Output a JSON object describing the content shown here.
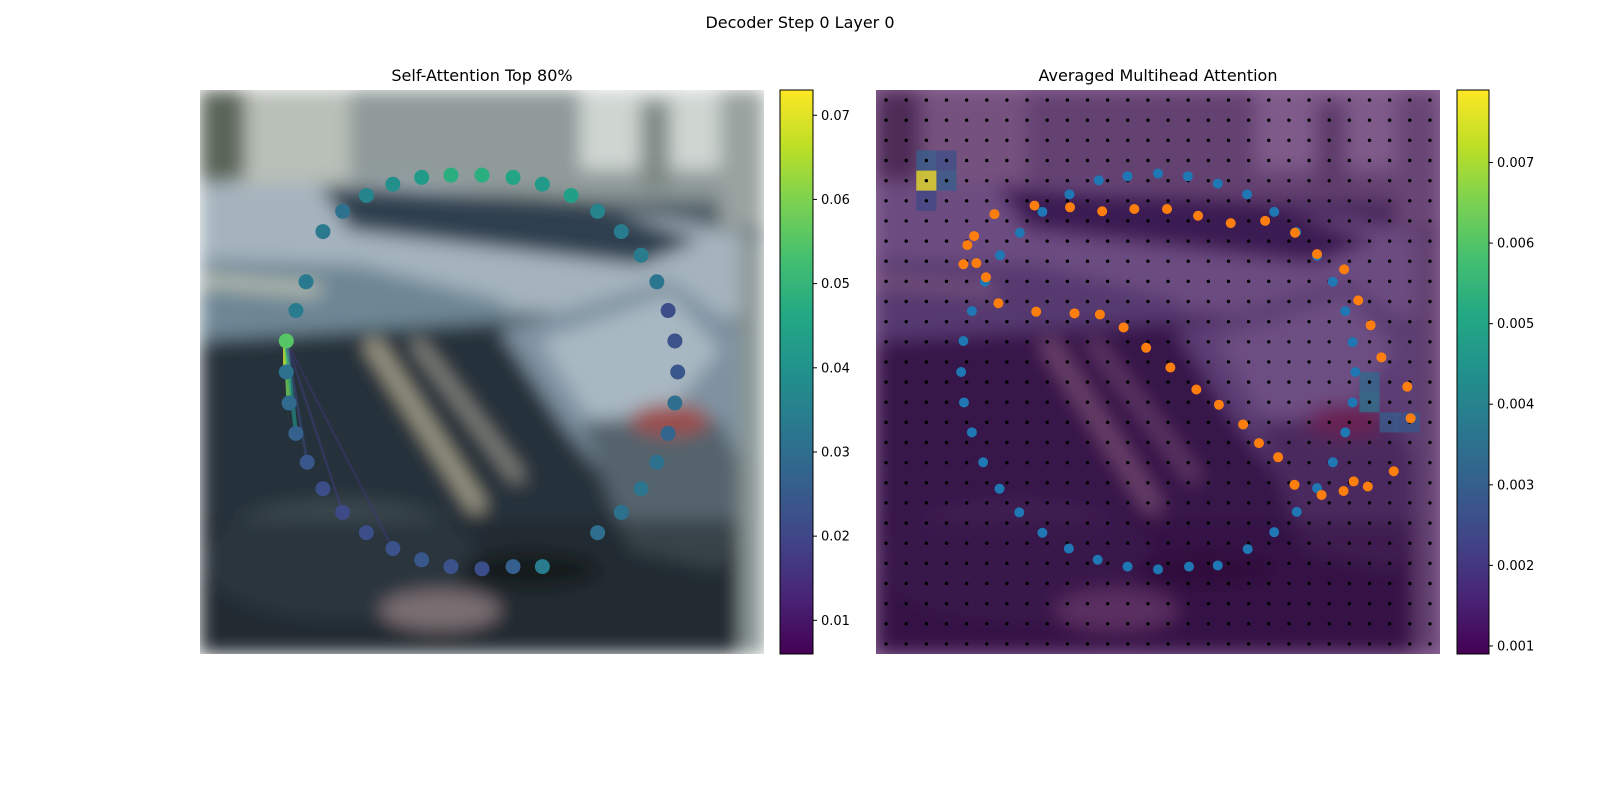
{
  "figure": {
    "suptitle": "Decoder Step 0 Layer 0"
  },
  "colors": {
    "viridis": [
      "#440154",
      "#482475",
      "#414487",
      "#355f8d",
      "#2a788e",
      "#21918c",
      "#22a884",
      "#44bf70",
      "#7ad151",
      "#bddf26",
      "#fde725"
    ],
    "orange_points": "#ff7f0e",
    "blue_points": "#1f77b4",
    "grid_dots": "#000000"
  },
  "chart_data": [
    {
      "type": "scatter",
      "title": "Self-Attention Top 80%",
      "background": "blurred street photo with parked cars",
      "xlim": [
        0,
        1
      ],
      "ylim": [
        0,
        1
      ],
      "points": [
        {
          "x": 0.5,
          "y": 0.849,
          "v": 0.048
        },
        {
          "x": 0.555,
          "y": 0.845,
          "v": 0.045
        },
        {
          "x": 0.607,
          "y": 0.833,
          "v": 0.042
        },
        {
          "x": 0.658,
          "y": 0.813,
          "v": 0.044
        },
        {
          "x": 0.705,
          "y": 0.785,
          "v": 0.036
        },
        {
          "x": 0.747,
          "y": 0.749,
          "v": 0.034
        },
        {
          "x": 0.782,
          "y": 0.707,
          "v": 0.034
        },
        {
          "x": 0.81,
          "y": 0.66,
          "v": 0.032
        },
        {
          "x": 0.83,
          "y": 0.609,
          "v": 0.022
        },
        {
          "x": 0.842,
          "y": 0.555,
          "v": 0.023
        },
        {
          "x": 0.847,
          "y": 0.5,
          "v": 0.024
        },
        {
          "x": 0.842,
          "y": 0.445,
          "v": 0.03
        },
        {
          "x": 0.83,
          "y": 0.391,
          "v": 0.028
        },
        {
          "x": 0.81,
          "y": 0.34,
          "v": 0.031
        },
        {
          "x": 0.782,
          "y": 0.293,
          "v": 0.032
        },
        {
          "x": 0.747,
          "y": 0.251,
          "v": 0.031
        },
        {
          "x": 0.705,
          "y": 0.215,
          "v": 0.03
        },
        {
          "x": 0.607,
          "y": 0.155,
          "v": 0.034
        },
        {
          "x": 0.555,
          "y": 0.155,
          "v": 0.026
        },
        {
          "x": 0.5,
          "y": 0.151,
          "v": 0.022
        },
        {
          "x": 0.445,
          "y": 0.155,
          "v": 0.023
        },
        {
          "x": 0.393,
          "y": 0.167,
          "v": 0.024
        },
        {
          "x": 0.342,
          "y": 0.187,
          "v": 0.023
        },
        {
          "x": 0.295,
          "y": 0.215,
          "v": 0.022
        },
        {
          "x": 0.253,
          "y": 0.251,
          "v": 0.021
        },
        {
          "x": 0.218,
          "y": 0.293,
          "v": 0.022
        },
        {
          "x": 0.19,
          "y": 0.34,
          "v": 0.024
        },
        {
          "x": 0.17,
          "y": 0.391,
          "v": 0.027
        },
        {
          "x": 0.158,
          "y": 0.445,
          "v": 0.029
        },
        {
          "x": 0.153,
          "y": 0.5,
          "v": 0.031
        },
        {
          "x": 0.153,
          "y": 0.555,
          "v": 0.055
        },
        {
          "x": 0.17,
          "y": 0.609,
          "v": 0.034
        },
        {
          "x": 0.188,
          "y": 0.66,
          "v": 0.033
        },
        {
          "x": 0.218,
          "y": 0.749,
          "v": 0.033
        },
        {
          "x": 0.253,
          "y": 0.785,
          "v": 0.031
        },
        {
          "x": 0.295,
          "y": 0.813,
          "v": 0.036
        },
        {
          "x": 0.342,
          "y": 0.833,
          "v": 0.039
        },
        {
          "x": 0.393,
          "y": 0.845,
          "v": 0.042
        },
        {
          "x": 0.445,
          "y": 0.849,
          "v": 0.048
        }
      ],
      "source_index": 30,
      "edges": [
        {
          "to": 29,
          "w": 0.07
        },
        {
          "to": 28,
          "w": 0.058
        },
        {
          "to": 27,
          "w": 0.04
        },
        {
          "to": 26,
          "w": 0.022
        },
        {
          "to": 24,
          "w": 0.018
        },
        {
          "to": 22,
          "w": 0.016
        }
      ],
      "colorbar": {
        "vmin": 0.006,
        "vmax": 0.073,
        "ticks": [
          "0.01",
          "0.02",
          "0.03",
          "0.04",
          "0.05",
          "0.06",
          "0.07"
        ]
      }
    },
    {
      "type": "heatmap",
      "title": "Averaged Multihead Attention",
      "background": "blurred street photo with parked cars",
      "grid": {
        "cols": 28,
        "rows": 28
      },
      "hot_cells": [
        {
          "col": 2,
          "row": 4,
          "v": 0.0077
        },
        {
          "col": 2,
          "row": 3,
          "v": 0.003
        },
        {
          "col": 3,
          "row": 3,
          "v": 0.0026
        },
        {
          "col": 3,
          "row": 4,
          "v": 0.003
        },
        {
          "col": 2,
          "row": 5,
          "v": 0.0024
        },
        {
          "col": 24,
          "row": 14,
          "v": 0.0033
        },
        {
          "col": 24,
          "row": 15,
          "v": 0.0036
        },
        {
          "col": 25,
          "row": 16,
          "v": 0.003
        },
        {
          "col": 26,
          "row": 16,
          "v": 0.0028
        }
      ],
      "series": [
        {
          "name": "blue",
          "points": [
            [
              0.343,
              0.815
            ],
            [
              0.395,
              0.84
            ],
            [
              0.446,
              0.847
            ],
            [
              0.5,
              0.852
            ],
            [
              0.553,
              0.847
            ],
            [
              0.606,
              0.834
            ],
            [
              0.658,
              0.815
            ],
            [
              0.706,
              0.784
            ],
            [
              0.745,
              0.748
            ],
            [
              0.782,
              0.706
            ],
            [
              0.81,
              0.66
            ],
            [
              0.832,
              0.608
            ],
            [
              0.845,
              0.553
            ],
            [
              0.85,
              0.5
            ],
            [
              0.845,
              0.446
            ],
            [
              0.832,
              0.393
            ],
            [
              0.81,
              0.34
            ],
            [
              0.782,
              0.294
            ],
            [
              0.746,
              0.252
            ],
            [
              0.706,
              0.216
            ],
            [
              0.659,
              0.186
            ],
            [
              0.606,
              0.157
            ],
            [
              0.555,
              0.155
            ],
            [
              0.5,
              0.15
            ],
            [
              0.446,
              0.155
            ],
            [
              0.393,
              0.167
            ],
            [
              0.342,
              0.187
            ],
            [
              0.295,
              0.215
            ],
            [
              0.254,
              0.251
            ],
            [
              0.219,
              0.293
            ],
            [
              0.19,
              0.34
            ],
            [
              0.17,
              0.393
            ],
            [
              0.156,
              0.446
            ],
            [
              0.151,
              0.5
            ],
            [
              0.155,
              0.555
            ],
            [
              0.17,
              0.608
            ],
            [
              0.193,
              0.66
            ],
            [
              0.22,
              0.707
            ],
            [
              0.255,
              0.747
            ],
            [
              0.295,
              0.784
            ]
          ]
        },
        {
          "name": "orange",
          "points": [
            [
              0.155,
              0.691
            ],
            [
              0.174,
              0.741
            ],
            [
              0.21,
              0.78
            ],
            [
              0.281,
              0.795
            ],
            [
              0.344,
              0.792
            ],
            [
              0.401,
              0.785
            ],
            [
              0.458,
              0.789
            ],
            [
              0.516,
              0.789
            ],
            [
              0.571,
              0.777
            ],
            [
              0.629,
              0.764
            ],
            [
              0.69,
              0.768
            ],
            [
              0.743,
              0.747
            ],
            [
              0.782,
              0.709
            ],
            [
              0.83,
              0.682
            ],
            [
              0.855,
              0.627
            ],
            [
              0.877,
              0.583
            ],
            [
              0.896,
              0.526
            ],
            [
              0.942,
              0.474
            ],
            [
              0.948,
              0.418
            ],
            [
              0.918,
              0.324
            ],
            [
              0.872,
              0.297
            ],
            [
              0.847,
              0.306
            ],
            [
              0.829,
              0.289
            ],
            [
              0.79,
              0.282
            ],
            [
              0.742,
              0.3
            ],
            [
              0.713,
              0.349
            ],
            [
              0.679,
              0.374
            ],
            [
              0.651,
              0.407
            ],
            [
              0.608,
              0.442
            ],
            [
              0.568,
              0.469
            ],
            [
              0.522,
              0.508
            ],
            [
              0.479,
              0.543
            ],
            [
              0.439,
              0.579
            ],
            [
              0.397,
              0.602
            ],
            [
              0.352,
              0.604
            ],
            [
              0.284,
              0.607
            ],
            [
              0.217,
              0.622
            ],
            [
              0.195,
              0.668
            ],
            [
              0.178,
              0.693
            ],
            [
              0.162,
              0.725
            ]
          ]
        }
      ],
      "colorbar": {
        "vmin": 0.0009,
        "vmax": 0.0079,
        "ticks": [
          "0.001",
          "0.002",
          "0.003",
          "0.004",
          "0.005",
          "0.006",
          "0.007"
        ]
      }
    }
  ]
}
